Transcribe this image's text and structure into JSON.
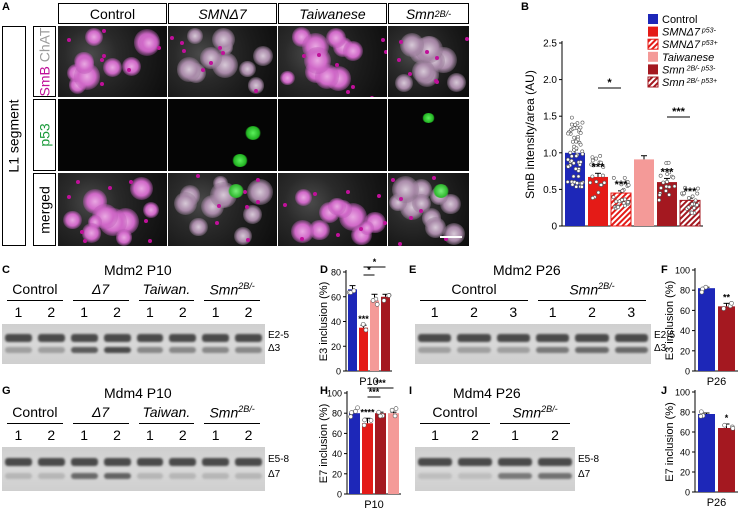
{
  "panel_letters": {
    "A": "A",
    "B": "B",
    "C": "C",
    "D": "D",
    "E": "E",
    "F": "F",
    "G": "G",
    "H": "H",
    "I": "I",
    "J": "J"
  },
  "panelA": {
    "columns": [
      {
        "label": "Control",
        "italic": false
      },
      {
        "label": "SMNΔ7",
        "italic": true
      },
      {
        "label": "Taiwanese",
        "italic": true
      },
      {
        "label": "Smn",
        "sup": "2B/-",
        "italic": true
      }
    ],
    "section_label": "L1 segment",
    "rows": [
      {
        "parts": [
          {
            "text": "SmB ",
            "color": "#c0109a"
          },
          {
            "text": "ChAT",
            "color": "#9a9a9a"
          }
        ]
      },
      {
        "parts": [
          {
            "text": "p53",
            "color": "#1a9a3a"
          }
        ]
      },
      {
        "parts": [
          {
            "text": "merged",
            "color": "#000000"
          }
        ]
      }
    ]
  },
  "chart_data": [
    {
      "panel": "B",
      "type": "bar",
      "ylabel": "SmB intensity/area (AU)",
      "ylim": [
        0,
        2.5
      ],
      "yticks": [
        "0",
        "0.5",
        "1.0",
        "1.5",
        "2.0",
        "2.5"
      ],
      "categories": [
        "Control",
        "SMNΔ7 p53-",
        "SMNΔ7 p53+",
        "Taiwanese",
        "Smn2B/- p53-",
        "Smn2B/- p53+"
      ],
      "values": [
        1.0,
        0.67,
        0.45,
        0.91,
        0.6,
        0.35
      ],
      "errors": [
        0.04,
        0.05,
        0.03,
        0.05,
        0.05,
        0.03
      ],
      "colors": [
        "#1d27b8",
        "#e41b17",
        "#e41b17",
        "#f49a98",
        "#a41820",
        "#a41820"
      ],
      "hatched": [
        false,
        false,
        true,
        false,
        false,
        true
      ],
      "significance": [
        "",
        "***",
        "***",
        "",
        "***",
        "***"
      ],
      "brackets": [
        {
          "from": 1,
          "to": 2,
          "label": "*"
        },
        {
          "from": 4,
          "to": 5,
          "label": "***"
        }
      ],
      "legend": [
        {
          "main": "Control",
          "sup": "",
          "italic": false
        },
        {
          "main": "SMNΔ7",
          "sup": "p53-",
          "italic": true
        },
        {
          "main": "SMNΔ7",
          "sup": "p53+",
          "italic": true
        },
        {
          "main": "Taiwanese",
          "sup": "",
          "italic": true
        },
        {
          "main": "Smn",
          "sup": "2B/- p53-",
          "italic": true
        },
        {
          "main": "Smn",
          "sup": "2B/- p53+",
          "italic": true
        }
      ]
    },
    {
      "panel": "D",
      "type": "bar",
      "ylabel": "E3 inclusion (%)",
      "xlabel": "P10",
      "ylim": [
        0,
        80
      ],
      "yticks": [
        "0",
        "20",
        "40",
        "60",
        "80"
      ],
      "categories": [
        "Control",
        "Δ7",
        "Taiwanese",
        "Smn2B/-"
      ],
      "values": [
        66,
        35,
        57,
        60
      ],
      "errors": [
        3,
        2,
        5,
        2
      ],
      "colors": [
        "#1d27b8",
        "#e41b17",
        "#f49a98",
        "#a41820"
      ],
      "significance": [
        "",
        "***",
        "",
        ""
      ],
      "brackets": [
        {
          "from": 1,
          "to": 3,
          "label": "*"
        },
        {
          "from": 1,
          "to": 2,
          "label": "*"
        }
      ]
    },
    {
      "panel": "F",
      "type": "bar",
      "ylabel": "E3 inclusion (%)",
      "xlabel": "P26",
      "ylim": [
        0,
        100
      ],
      "yticks": [
        "0",
        "20",
        "40",
        "60",
        "80",
        "100"
      ],
      "categories": [
        "Control",
        "Smn2B/-"
      ],
      "values": [
        82,
        64
      ],
      "errors": [
        1,
        3
      ],
      "colors": [
        "#1d27b8",
        "#a41820"
      ],
      "significance": [
        "",
        "**"
      ],
      "brackets": []
    },
    {
      "panel": "H",
      "type": "bar",
      "ylabel": "E7 inclusion (%)",
      "xlabel": "P10",
      "ylim": [
        0,
        100
      ],
      "yticks": [
        "0",
        "20",
        "40",
        "60",
        "80",
        "100"
      ],
      "categories": [
        "Control",
        "Δ7",
        "Smn2B/-",
        "Taiwanese"
      ],
      "values": [
        80,
        70,
        80,
        80
      ],
      "errors": [
        2,
        5,
        1,
        1
      ],
      "colors": [
        "#1d27b8",
        "#e41b17",
        "#a41820",
        "#f49a98"
      ],
      "significance": [
        "",
        "****",
        "",
        ""
      ],
      "brackets": [
        {
          "from": 1,
          "to": 3,
          "label": "***"
        },
        {
          "from": 1,
          "to": 2,
          "label": "***"
        }
      ]
    },
    {
      "panel": "J",
      "type": "bar",
      "ylabel": "E7 inclusion (%)",
      "xlabel": "P26",
      "ylim": [
        0,
        100
      ],
      "yticks": [
        "0",
        "20",
        "40",
        "60",
        "80",
        "100"
      ],
      "categories": [
        "Control",
        "Smn2B/-"
      ],
      "values": [
        78,
        64
      ],
      "errors": [
        1,
        4
      ],
      "colors": [
        "#1d27b8",
        "#a41820"
      ],
      "significance": [
        "",
        "*"
      ],
      "brackets": []
    }
  ],
  "gels": {
    "C": {
      "title": "Mdm2 P10",
      "groups": [
        {
          "label": "Control",
          "italic": false
        },
        {
          "label": "Δ7",
          "italic": true
        },
        {
          "label": "Taiwan.",
          "italic": true
        },
        {
          "label": "Smn",
          "sup": "2B/-",
          "italic": true
        }
      ],
      "lanes": [
        "1",
        "2",
        "1",
        "2",
        "1",
        "2",
        "1",
        "2"
      ],
      "bands": [
        "E2-5",
        "Δ3"
      ]
    },
    "E": {
      "title": "Mdm2 P26",
      "groups": [
        {
          "label": "Control",
          "italic": false
        },
        {
          "label": "Smn",
          "sup": "2B/-",
          "italic": true
        }
      ],
      "lanes": [
        "1",
        "2",
        "3",
        "1",
        "2",
        "3"
      ],
      "bands": [
        "E2-5",
        "Δ3"
      ]
    },
    "G": {
      "title": "Mdm4 P10",
      "groups": [
        {
          "label": "Control",
          "italic": false
        },
        {
          "label": "Δ7",
          "italic": true
        },
        {
          "label": "Taiwan.",
          "italic": true
        },
        {
          "label": "Smn",
          "sup": "2B/-",
          "italic": true
        }
      ],
      "lanes": [
        "1",
        "2",
        "1",
        "2",
        "1",
        "2",
        "1",
        "2"
      ],
      "bands": [
        "E5-8",
        "Δ7"
      ]
    },
    "I": {
      "title": "Mdm4 P26",
      "groups": [
        {
          "label": "Control",
          "italic": false
        },
        {
          "label": "Smn",
          "sup": "2B/-",
          "italic": true
        }
      ],
      "lanes": [
        "1",
        "2",
        "1",
        "2"
      ],
      "bands": [
        "E5-8",
        "Δ7"
      ]
    }
  }
}
